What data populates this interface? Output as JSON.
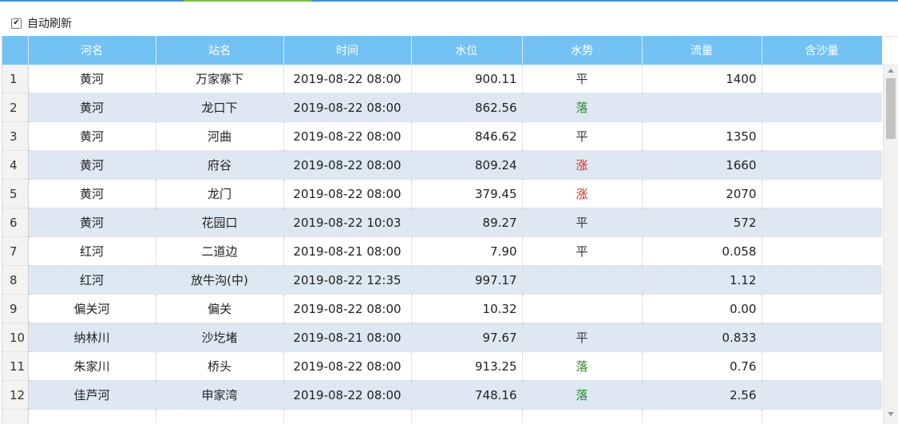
{
  "toolbar": {
    "auto_refresh_label": "自动刷新",
    "auto_refresh_checked": true
  },
  "columns": [
    "河名",
    "站名",
    "时间",
    "水位",
    "水势",
    "流量",
    "含沙量"
  ],
  "rows": [
    {
      "index": "1",
      "river": "黄河",
      "station": "万家寨下",
      "time": "2019-08-22 08:00",
      "level": "900.11",
      "trend": "平",
      "flow": "1400",
      "sediment": ""
    },
    {
      "index": "2",
      "river": "黄河",
      "station": "龙口下",
      "time": "2019-08-22 08:00",
      "level": "862.56",
      "trend": "落",
      "flow": "",
      "sediment": ""
    },
    {
      "index": "3",
      "river": "黄河",
      "station": "河曲",
      "time": "2019-08-22 08:00",
      "level": "846.62",
      "trend": "平",
      "flow": "1350",
      "sediment": ""
    },
    {
      "index": "4",
      "river": "黄河",
      "station": "府谷",
      "time": "2019-08-22 08:00",
      "level": "809.24",
      "trend": "涨",
      "flow": "1660",
      "sediment": ""
    },
    {
      "index": "5",
      "river": "黄河",
      "station": "龙门",
      "time": "2019-08-22 08:00",
      "level": "379.45",
      "trend": "涨",
      "flow": "2070",
      "sediment": ""
    },
    {
      "index": "6",
      "river": "黄河",
      "station": "花园口",
      "time": "2019-08-22 10:03",
      "level": "89.27",
      "trend": "平",
      "flow": "572",
      "sediment": ""
    },
    {
      "index": "7",
      "river": "红河",
      "station": "二道边",
      "time": "2019-08-21 08:00",
      "level": "7.90",
      "trend": "平",
      "flow": "0.058",
      "sediment": ""
    },
    {
      "index": "8",
      "river": "红河",
      "station": "放牛沟(中)",
      "time": "2019-08-22 12:35",
      "level": "997.17",
      "trend": "",
      "flow": "1.12",
      "sediment": ""
    },
    {
      "index": "9",
      "river": "偏关河",
      "station": "偏关",
      "time": "2019-08-22 08:00",
      "level": "10.32",
      "trend": "",
      "flow": "0.00",
      "sediment": ""
    },
    {
      "index": "10",
      "river": "纳林川",
      "station": "沙圪堵",
      "time": "2019-08-21 08:00",
      "level": "97.67",
      "trend": "平",
      "flow": "0.833",
      "sediment": ""
    },
    {
      "index": "11",
      "river": "朱家川",
      "station": "桥头",
      "time": "2019-08-22 08:00",
      "level": "913.25",
      "trend": "落",
      "flow": "0.76",
      "sediment": ""
    },
    {
      "index": "12",
      "river": "佳芦河",
      "station": "申家湾",
      "time": "2019-08-22 08:00",
      "level": "748.16",
      "trend": "落",
      "flow": "2.56",
      "sediment": ""
    },
    {
      "index": "",
      "river": "",
      "station": "",
      "time": "",
      "level": "",
      "trend": "",
      "flow": "",
      "sediment": ""
    }
  ],
  "colors": {
    "header_bg": "#73c2f4",
    "even_row_bg": "#dde8f3",
    "rise": "#e0251b",
    "fall": "#23881f"
  }
}
